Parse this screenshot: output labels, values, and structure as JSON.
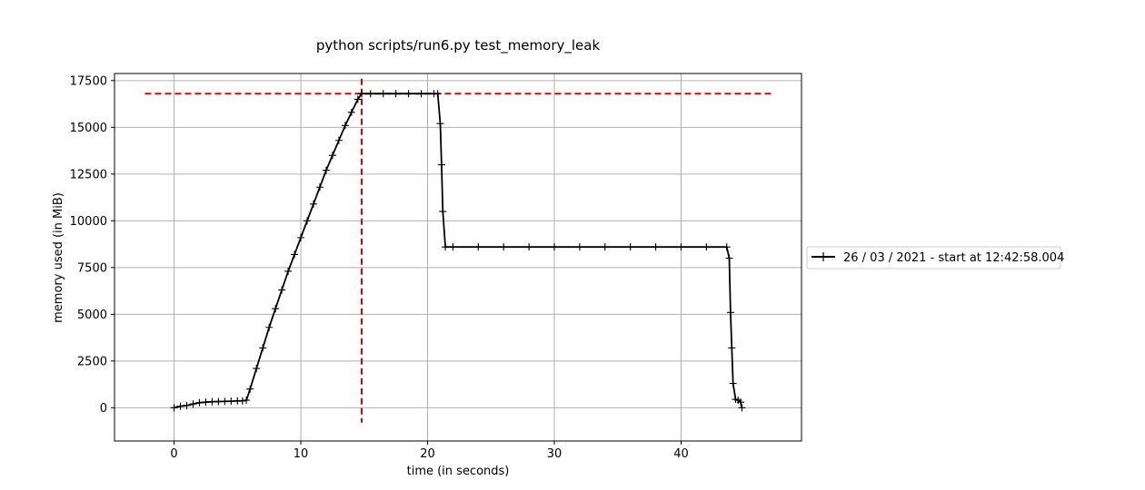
{
  "chart_data": {
    "type": "line",
    "title": "python scripts/run6.py test_memory_leak",
    "xlabel": "time (in seconds)",
    "ylabel": "memory used (in MiB)",
    "xlim": [
      -4.7,
      49.5
    ],
    "ylim": [
      -1780,
      17880
    ],
    "xticks": [
      0,
      10,
      20,
      30,
      40
    ],
    "yticks": [
      0,
      2500,
      5000,
      7500,
      10000,
      12500,
      15000,
      17500
    ],
    "grid": true,
    "legend": {
      "location": "right",
      "entries": [
        "26 / 03 / 2021 - start at 12:42:58.004"
      ]
    },
    "colors": {
      "series": "#000000",
      "peak_lines": "#e00000",
      "grid": "#b0b0b0"
    },
    "series": [
      {
        "name": "26 / 03 / 2021 - start at 12:42:58.004",
        "marker": "plus",
        "points": [
          [
            0.0,
            0
          ],
          [
            0.5,
            80
          ],
          [
            1.0,
            120
          ],
          [
            1.5,
            200
          ],
          [
            2.0,
            270
          ],
          [
            2.5,
            300
          ],
          [
            3.0,
            320
          ],
          [
            3.5,
            330
          ],
          [
            4.0,
            340
          ],
          [
            4.5,
            350
          ],
          [
            5.0,
            360
          ],
          [
            5.4,
            370
          ],
          [
            5.7,
            400
          ],
          [
            6.0,
            1000
          ],
          [
            6.5,
            2100
          ],
          [
            7.0,
            3200
          ],
          [
            7.5,
            4300
          ],
          [
            8.0,
            5300
          ],
          [
            8.5,
            6300
          ],
          [
            9.0,
            7300
          ],
          [
            9.5,
            8200
          ],
          [
            10.0,
            9100
          ],
          [
            10.5,
            10000
          ],
          [
            11.0,
            10900
          ],
          [
            11.5,
            11800
          ],
          [
            12.0,
            12700
          ],
          [
            12.5,
            13500
          ],
          [
            13.0,
            14300
          ],
          [
            13.5,
            15100
          ],
          [
            14.0,
            15800
          ],
          [
            14.5,
            16500
          ],
          [
            14.8,
            16800
          ],
          [
            15.5,
            16800
          ],
          [
            16.5,
            16800
          ],
          [
            17.5,
            16800
          ],
          [
            18.5,
            16800
          ],
          [
            19.5,
            16800
          ],
          [
            20.5,
            16800
          ],
          [
            20.8,
            16800
          ],
          [
            21.0,
            15200
          ],
          [
            21.1,
            13000
          ],
          [
            21.2,
            10500
          ],
          [
            21.4,
            8600
          ],
          [
            22.0,
            8600
          ],
          [
            24.0,
            8600
          ],
          [
            26.0,
            8600
          ],
          [
            28.0,
            8600
          ],
          [
            30.0,
            8600
          ],
          [
            32.0,
            8600
          ],
          [
            34.0,
            8600
          ],
          [
            36.0,
            8600
          ],
          [
            38.0,
            8600
          ],
          [
            40.0,
            8600
          ],
          [
            42.0,
            8600
          ],
          [
            43.6,
            8600
          ],
          [
            43.8,
            8000
          ],
          [
            43.9,
            5100
          ],
          [
            44.0,
            3200
          ],
          [
            44.1,
            1300
          ],
          [
            44.3,
            450
          ],
          [
            44.5,
            400
          ],
          [
            44.7,
            300
          ],
          [
            44.8,
            0
          ]
        ]
      }
    ],
    "annotations": {
      "peak_memory": 16800,
      "peak_time": 14.8,
      "hline_x_range": [
        -2.3,
        47.1
      ],
      "vline_y_range": [
        -800,
        17600
      ]
    }
  }
}
